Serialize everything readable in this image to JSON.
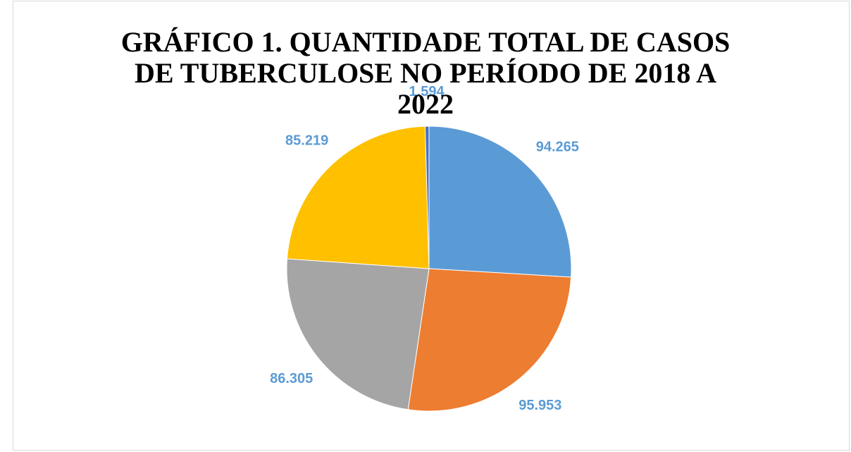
{
  "chart_data": {
    "type": "pie",
    "title": "GRÁFICO 1. QUANTIDADE TOTAL DE CASOS DE TUBERCULOSE NO PERÍODO DE 2018 A 2022",
    "values": [
      94265,
      95953,
      86305,
      85219,
      1594
    ],
    "value_labels": [
      "94.265",
      "95.953",
      "86.305",
      "85.219",
      "1.594"
    ],
    "colors": [
      "#5b9bd5",
      "#ed7d31",
      "#a5a5a5",
      "#ffc000",
      "#4472c4"
    ],
    "label_color": "#5b9bd5"
  }
}
